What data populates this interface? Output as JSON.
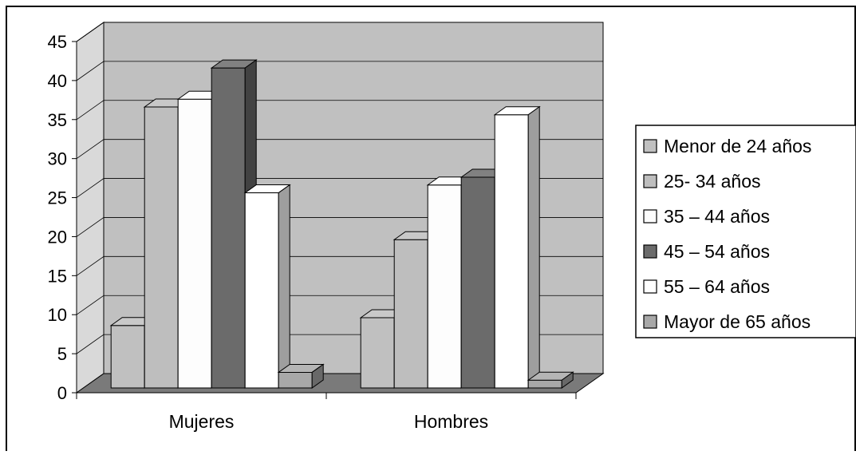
{
  "chart_data": {
    "type": "bar",
    "title": "",
    "xlabel": "",
    "ylabel": "",
    "categories": [
      "Mujeres",
      "Hombres"
    ],
    "ylim": [
      0,
      45
    ],
    "yticks": [
      "0",
      "5",
      "10",
      "15",
      "20",
      "25",
      "30",
      "35",
      "40",
      "45"
    ],
    "grid": true,
    "three_d": true,
    "legend_position": "right",
    "series": [
      {
        "name": "Menor de 24 años",
        "values": [
          8,
          9
        ],
        "color": "#c0c0c0"
      },
      {
        "name": "25- 34 años",
        "values": [
          36,
          19
        ],
        "color": "#bebebe"
      },
      {
        "name": "35 – 44 años",
        "values": [
          37,
          26
        ],
        "color": "#fdfdfd"
      },
      {
        "name": "45 – 54 años",
        "values": [
          41,
          27
        ],
        "color": "#6b6b6b"
      },
      {
        "name": "55 – 64 años",
        "values": [
          25,
          35
        ],
        "color": "#ffffff"
      },
      {
        "name": "Mayor  de 65 años",
        "values": [
          2,
          1
        ],
        "color": "#a8a8a8"
      }
    ],
    "colors": {
      "wall": "#c0c0c0",
      "side_wall": "#d9d9d9",
      "floor": "#7a7a7a",
      "grid": "#000000"
    }
  }
}
